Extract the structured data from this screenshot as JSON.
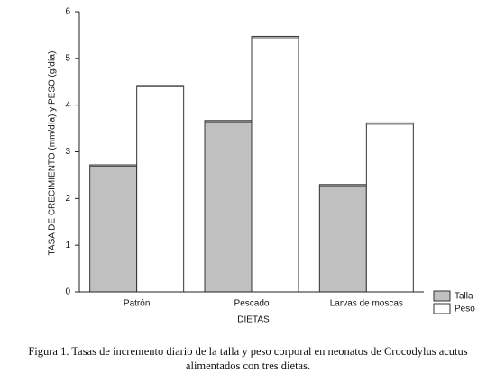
{
  "chart_data": {
    "type": "bar",
    "y_label": "TASA DE CRECIMIENTO (mm/día) y PESO (g/día)",
    "x_label": "DIETAS",
    "categories": [
      "Patrón",
      "Pescado",
      "Larvas de moscas"
    ],
    "series": [
      {
        "name": "Talla",
        "color": "#c0c0c0",
        "values": [
          2.72,
          3.67,
          2.3
        ]
      },
      {
        "name": "Peso",
        "color": "#ffffff",
        "values": [
          4.42,
          5.47,
          3.62
        ]
      }
    ],
    "ylim": [
      0,
      6
    ],
    "yticks": [
      0,
      1,
      2,
      3,
      4,
      5,
      6
    ],
    "caption": [
      "Figura 1. Tasas de incremento diario de la talla y peso corporal en neonatos de Crocodylus acutus",
      "alimentados con tres dietas."
    ]
  }
}
